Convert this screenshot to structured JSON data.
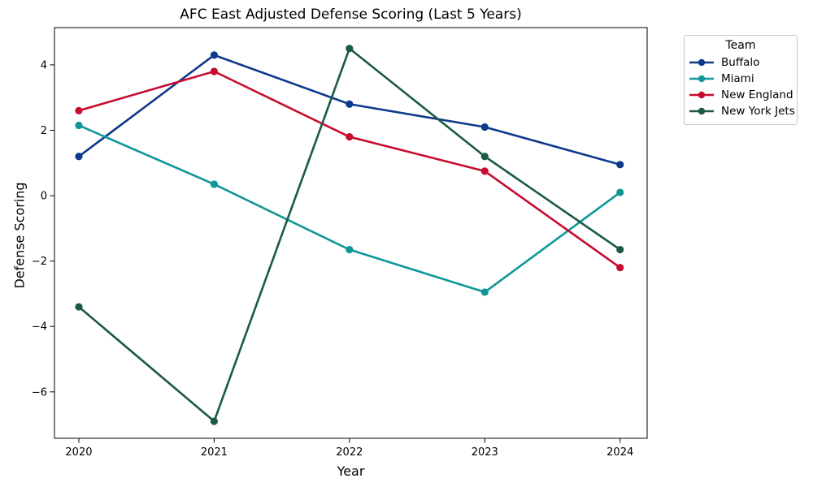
{
  "chart_data": {
    "type": "line",
    "title": "AFC East Adjusted Defense Scoring (Last 5 Years)",
    "xlabel": "Year",
    "ylabel": "Defense Scoring",
    "categories": [
      2020,
      2021,
      2022,
      2023,
      2024
    ],
    "x_tick_labels": [
      "2020",
      "2021",
      "2022",
      "2023",
      "2024"
    ],
    "y_ticks": [
      -6,
      -4,
      -2,
      0,
      2,
      4
    ],
    "y_tick_labels": [
      "−6",
      "−4",
      "−2",
      "0",
      "2",
      "4"
    ],
    "xlim": [
      2019.82,
      2024.2
    ],
    "ylim": [
      -7.42,
      5.14
    ],
    "grid": false,
    "legend": {
      "title": "Team",
      "position": "outside-upper-right"
    },
    "series": [
      {
        "name": "Buffalo",
        "color": "#0d3a8c",
        "values": [
          1.2,
          4.3,
          2.8,
          2.1,
          0.95
        ]
      },
      {
        "name": "Miami",
        "color": "#0e9799",
        "values": [
          2.15,
          0.35,
          -1.65,
          -2.95,
          0.1
        ]
      },
      {
        "name": "New England",
        "color": "#c60c30",
        "values": [
          2.6,
          3.8,
          1.8,
          0.75,
          -2.2
        ]
      },
      {
        "name": "New York Jets",
        "color": "#1a5a44",
        "values": [
          -3.4,
          -6.9,
          4.5,
          1.2,
          -1.65
        ]
      }
    ],
    "style": {
      "line_width": 2.6,
      "marker_radius": 4.6,
      "axis_color": "#000000",
      "background": "#ffffff"
    }
  }
}
